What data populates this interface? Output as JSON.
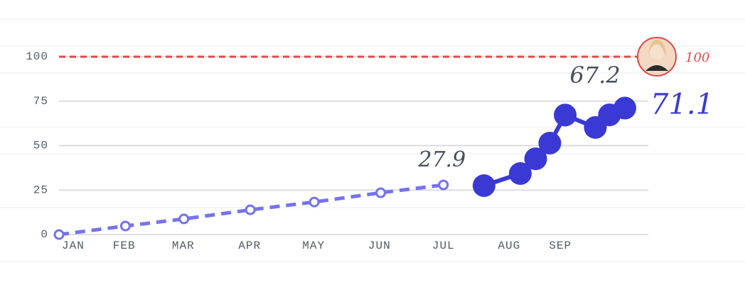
{
  "chart_data": {
    "type": "line",
    "xlim": [
      0,
      9.2
    ],
    "xticks": [
      {
        "value": 0.23,
        "label": "JAN"
      },
      {
        "value": 1.06,
        "label": "FEB"
      },
      {
        "value": 2.02,
        "label": "MAR"
      },
      {
        "value": 3.1,
        "label": "APR"
      },
      {
        "value": 4.14,
        "label": "MAY"
      },
      {
        "value": 5.21,
        "label": "JUN"
      },
      {
        "value": 6.25,
        "label": "JUL"
      },
      {
        "value": 7.32,
        "label": "AUG"
      },
      {
        "value": 8.15,
        "label": "SEP"
      }
    ],
    "ylim": [
      0,
      100
    ],
    "yticks": [
      0,
      25,
      50,
      75,
      100
    ],
    "grid": true,
    "target": 100,
    "target_color": "#e04848",
    "series": [
      {
        "color": "#7572f0",
        "dashed": true,
        "x": [
          0,
          1.08,
          2.03,
          3.11,
          4.15,
          5.23,
          6.25
        ],
        "values": [
          0,
          4.8,
          8.8,
          13.9,
          18.3,
          23.5,
          27.9
        ]
      },
      {
        "color": "#3a39d4",
        "dashed": false,
        "x": [
          6.91,
          7.5,
          7.75,
          7.98,
          8.23,
          8.72,
          8.95,
          9.2
        ],
        "values": [
          27.5,
          34.3,
          42.6,
          51.4,
          67.2,
          60.2,
          67.3,
          71.1
        ]
      }
    ]
  }
}
